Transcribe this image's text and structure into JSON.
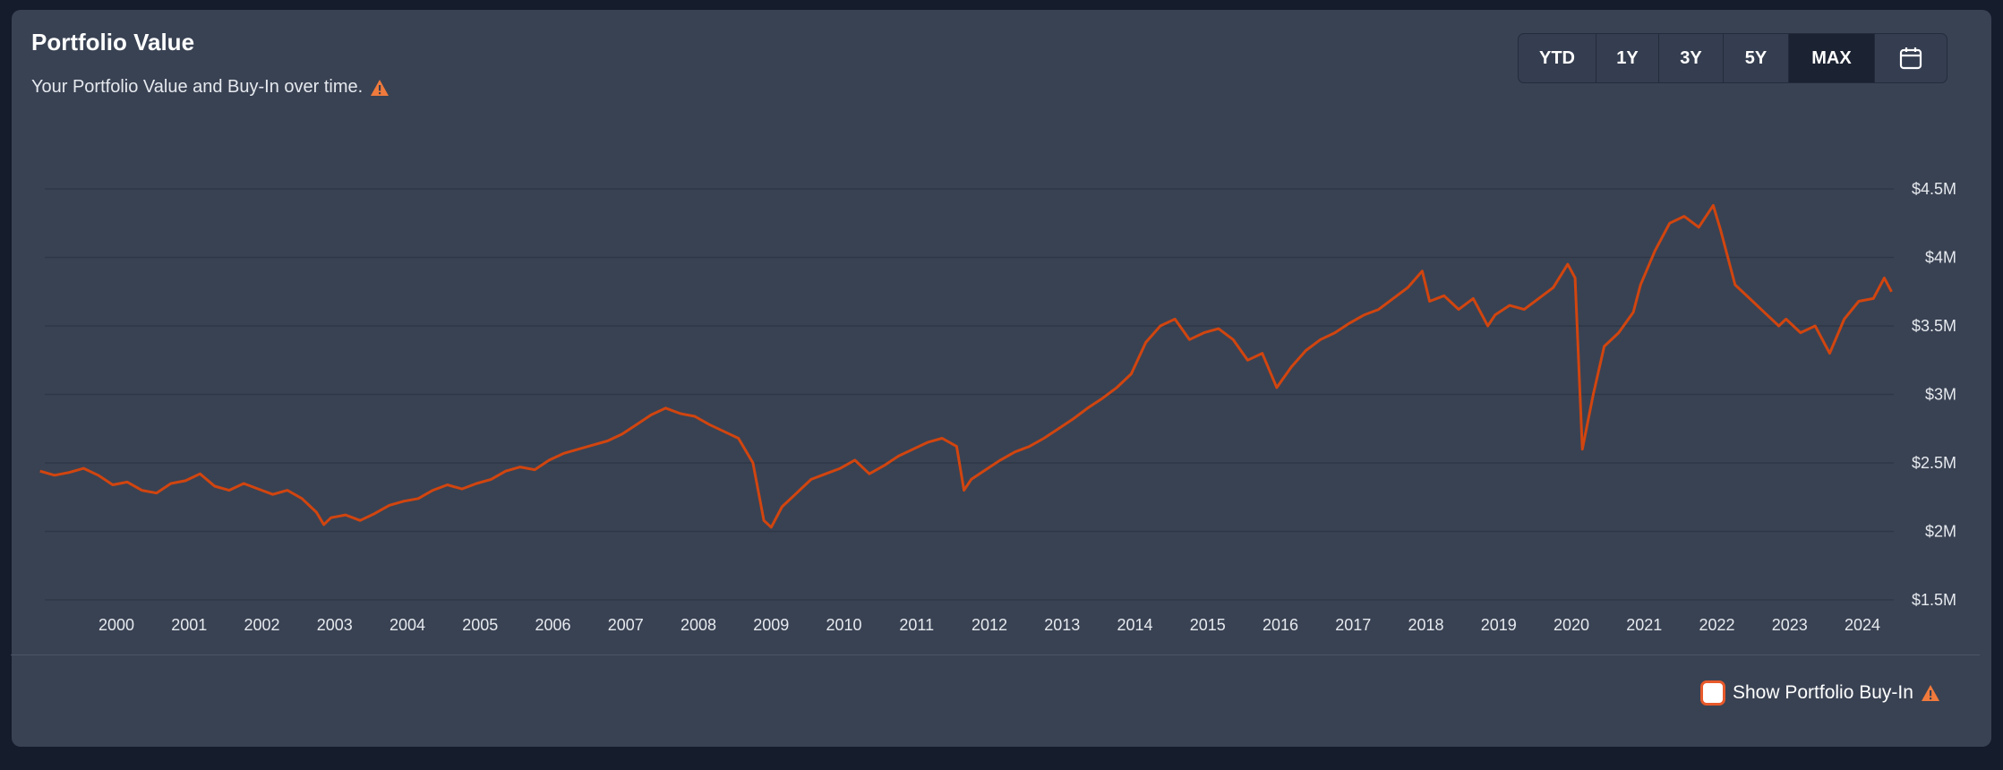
{
  "header": {
    "title": "Portfolio Value",
    "subtitle": "Your Portfolio Value and Buy-In over time."
  },
  "range_buttons": [
    "YTD",
    "1Y",
    "3Y",
    "5Y",
    "MAX"
  ],
  "active_range": "MAX",
  "calendar_icon": "calendar-icon",
  "footer": {
    "checkbox_label": "Show Portfolio Buy-In",
    "checked": false
  },
  "colors": {
    "line": "#d1450f",
    "warning": "#f07a3c",
    "active_button": "#1b2232",
    "card": "#394253"
  },
  "chart_data": {
    "type": "line",
    "title": "",
    "xlabel": "",
    "ylabel": "",
    "x_ticks": [
      "2000",
      "2001",
      "2002",
      "2003",
      "2004",
      "2005",
      "2006",
      "2007",
      "2008",
      "2009",
      "2010",
      "2011",
      "2012",
      "2013",
      "2014",
      "2015",
      "2016",
      "2017",
      "2018",
      "2019",
      "2020",
      "2021",
      "2022",
      "2023",
      "2024"
    ],
    "y_ticks": [
      "$1.5M",
      "$2M",
      "$2.5M",
      "$3M",
      "$3.5M",
      "$4M",
      "$4.5M"
    ],
    "ylim": [
      1.5,
      4.5
    ],
    "xlim": [
      1999.0,
      2024.6
    ],
    "grid": true,
    "series": [
      {
        "values_unit": "millions USD",
        "points": [
          [
            1999.0,
            2.44
          ],
          [
            1999.2,
            2.41
          ],
          [
            1999.4,
            2.43
          ],
          [
            1999.6,
            2.46
          ],
          [
            1999.8,
            2.41
          ],
          [
            2000.0,
            2.34
          ],
          [
            2000.2,
            2.36
          ],
          [
            2000.4,
            2.3
          ],
          [
            2000.6,
            2.28
          ],
          [
            2000.8,
            2.35
          ],
          [
            2001.0,
            2.37
          ],
          [
            2001.2,
            2.42
          ],
          [
            2001.4,
            2.33
          ],
          [
            2001.6,
            2.3
          ],
          [
            2001.8,
            2.35
          ],
          [
            2002.0,
            2.31
          ],
          [
            2002.2,
            2.27
          ],
          [
            2002.4,
            2.3
          ],
          [
            2002.6,
            2.24
          ],
          [
            2002.8,
            2.14
          ],
          [
            2002.9,
            2.05
          ],
          [
            2003.0,
            2.1
          ],
          [
            2003.2,
            2.12
          ],
          [
            2003.4,
            2.08
          ],
          [
            2003.6,
            2.13
          ],
          [
            2003.8,
            2.19
          ],
          [
            2004.0,
            2.22
          ],
          [
            2004.2,
            2.24
          ],
          [
            2004.4,
            2.3
          ],
          [
            2004.6,
            2.34
          ],
          [
            2004.8,
            2.31
          ],
          [
            2005.0,
            2.35
          ],
          [
            2005.2,
            2.38
          ],
          [
            2005.4,
            2.44
          ],
          [
            2005.6,
            2.47
          ],
          [
            2005.8,
            2.45
          ],
          [
            2006.0,
            2.52
          ],
          [
            2006.2,
            2.57
          ],
          [
            2006.4,
            2.6
          ],
          [
            2006.6,
            2.63
          ],
          [
            2006.8,
            2.66
          ],
          [
            2007.0,
            2.71
          ],
          [
            2007.2,
            2.78
          ],
          [
            2007.4,
            2.85
          ],
          [
            2007.6,
            2.9
          ],
          [
            2007.8,
            2.86
          ],
          [
            2008.0,
            2.84
          ],
          [
            2008.2,
            2.78
          ],
          [
            2008.4,
            2.73
          ],
          [
            2008.6,
            2.68
          ],
          [
            2008.8,
            2.5
          ],
          [
            2008.95,
            2.08
          ],
          [
            2009.05,
            2.03
          ],
          [
            2009.2,
            2.18
          ],
          [
            2009.4,
            2.28
          ],
          [
            2009.6,
            2.38
          ],
          [
            2009.8,
            2.42
          ],
          [
            2010.0,
            2.46
          ],
          [
            2010.2,
            2.52
          ],
          [
            2010.4,
            2.42
          ],
          [
            2010.6,
            2.48
          ],
          [
            2010.8,
            2.55
          ],
          [
            2011.0,
            2.6
          ],
          [
            2011.2,
            2.65
          ],
          [
            2011.4,
            2.68
          ],
          [
            2011.6,
            2.62
          ],
          [
            2011.7,
            2.3
          ],
          [
            2011.8,
            2.38
          ],
          [
            2012.0,
            2.45
          ],
          [
            2012.2,
            2.52
          ],
          [
            2012.4,
            2.58
          ],
          [
            2012.6,
            2.62
          ],
          [
            2012.8,
            2.68
          ],
          [
            2013.0,
            2.75
          ],
          [
            2013.2,
            2.82
          ],
          [
            2013.4,
            2.9
          ],
          [
            2013.6,
            2.97
          ],
          [
            2013.8,
            3.05
          ],
          [
            2014.0,
            3.15
          ],
          [
            2014.2,
            3.38
          ],
          [
            2014.4,
            3.5
          ],
          [
            2014.6,
            3.55
          ],
          [
            2014.8,
            3.4
          ],
          [
            2015.0,
            3.45
          ],
          [
            2015.2,
            3.48
          ],
          [
            2015.4,
            3.4
          ],
          [
            2015.6,
            3.25
          ],
          [
            2015.8,
            3.3
          ],
          [
            2016.0,
            3.05
          ],
          [
            2016.2,
            3.2
          ],
          [
            2016.4,
            3.32
          ],
          [
            2016.6,
            3.4
          ],
          [
            2016.8,
            3.45
          ],
          [
            2017.0,
            3.52
          ],
          [
            2017.2,
            3.58
          ],
          [
            2017.4,
            3.62
          ],
          [
            2017.6,
            3.7
          ],
          [
            2017.8,
            3.78
          ],
          [
            2018.0,
            3.9
          ],
          [
            2018.1,
            3.68
          ],
          [
            2018.3,
            3.72
          ],
          [
            2018.5,
            3.62
          ],
          [
            2018.7,
            3.7
          ],
          [
            2018.9,
            3.5
          ],
          [
            2019.0,
            3.58
          ],
          [
            2019.2,
            3.65
          ],
          [
            2019.4,
            3.62
          ],
          [
            2019.6,
            3.7
          ],
          [
            2019.8,
            3.78
          ],
          [
            2020.0,
            3.95
          ],
          [
            2020.1,
            3.85
          ],
          [
            2020.2,
            2.6
          ],
          [
            2020.35,
            3.0
          ],
          [
            2020.5,
            3.35
          ],
          [
            2020.7,
            3.45
          ],
          [
            2020.9,
            3.6
          ],
          [
            2021.0,
            3.8
          ],
          [
            2021.2,
            4.05
          ],
          [
            2021.4,
            4.25
          ],
          [
            2021.6,
            4.3
          ],
          [
            2021.8,
            4.22
          ],
          [
            2022.0,
            4.38
          ],
          [
            2022.1,
            4.2
          ],
          [
            2022.3,
            3.8
          ],
          [
            2022.5,
            3.7
          ],
          [
            2022.7,
            3.6
          ],
          [
            2022.9,
            3.5
          ],
          [
            2023.0,
            3.55
          ],
          [
            2023.2,
            3.45
          ],
          [
            2023.4,
            3.5
          ],
          [
            2023.6,
            3.3
          ],
          [
            2023.8,
            3.55
          ],
          [
            2024.0,
            3.68
          ],
          [
            2024.2,
            3.7
          ],
          [
            2024.35,
            3.85
          ],
          [
            2024.45,
            3.75
          ]
        ]
      }
    ]
  }
}
